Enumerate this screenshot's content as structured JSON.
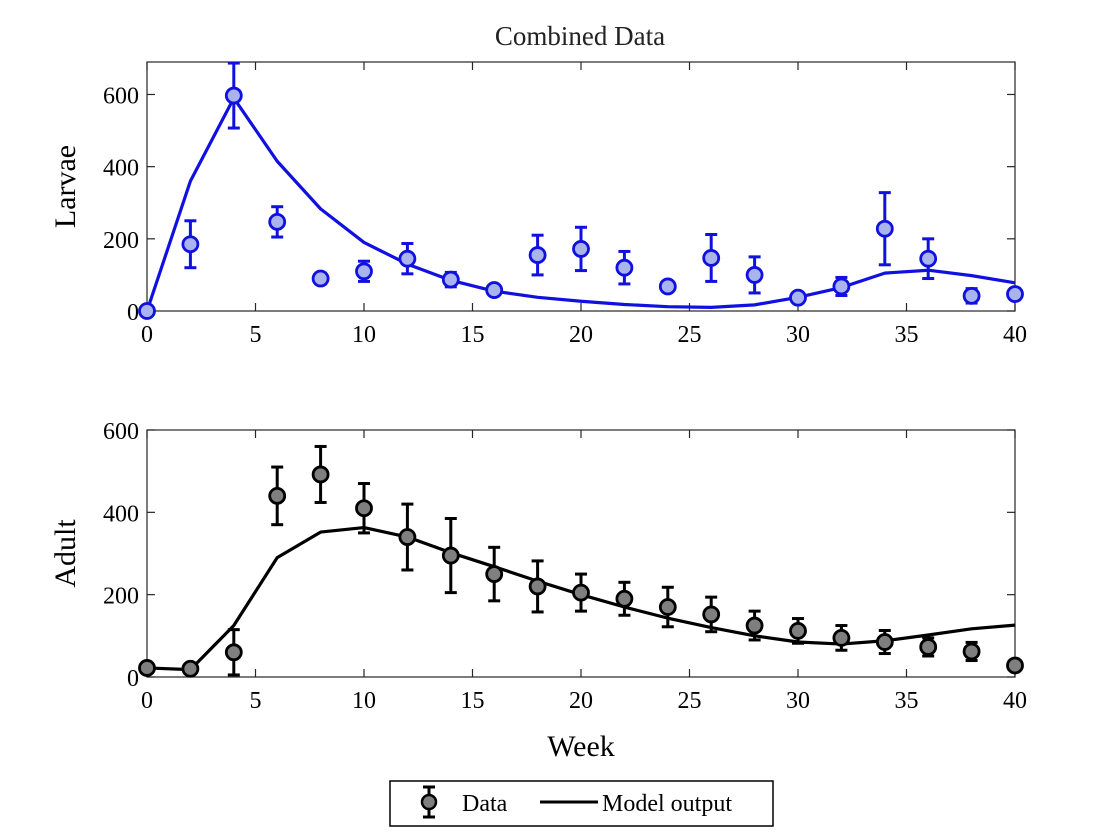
{
  "figure_title": "Combined Data",
  "legend": {
    "data_label": "Data",
    "model_label": "Model output",
    "placement": "bottom-center"
  },
  "colors": {
    "larvae_line": "#1010e0",
    "larvae_marker_fill": "#aab4ec",
    "adult_line": "#000000",
    "adult_marker_fill": "#7f7f7f",
    "legend_marker_fill": "#7f7f7f"
  },
  "chart_data": [
    {
      "type": "line",
      "panel": "top",
      "title": "Combined Data",
      "xlabel": "",
      "ylabel": "Larvae",
      "xlim": [
        0,
        40
      ],
      "ylim": [
        0,
        690
      ],
      "xticks": [
        0,
        5,
        10,
        15,
        20,
        25,
        30,
        35,
        40
      ],
      "yticks": [
        0,
        200,
        400,
        600
      ],
      "grid": false,
      "series": [
        {
          "name": "Data",
          "kind": "errorbar",
          "x": [
            0,
            2,
            4,
            6,
            8,
            10,
            12,
            14,
            16,
            18,
            20,
            22,
            24,
            26,
            28,
            30,
            32,
            34,
            36,
            38,
            40
          ],
          "y": [
            0,
            185,
            597,
            247,
            90,
            110,
            145,
            87,
            58,
            155,
            172,
            120,
            68,
            147,
            100,
            37,
            68,
            228,
            145,
            42,
            47
          ],
          "err": [
            2,
            65,
            90,
            42,
            15,
            28,
            42,
            20,
            12,
            55,
            60,
            45,
            12,
            65,
            50,
            12,
            25,
            100,
            55,
            20,
            15
          ]
        },
        {
          "name": "Model output",
          "kind": "line",
          "x": [
            0,
            2,
            4,
            6,
            8,
            10,
            12,
            14,
            16,
            18,
            20,
            22,
            24,
            26,
            28,
            30,
            32,
            34,
            36,
            38,
            40
          ],
          "y": [
            0,
            360,
            590,
            415,
            283,
            190,
            130,
            85,
            55,
            38,
            27,
            18,
            12,
            10,
            17,
            38,
            65,
            105,
            113,
            98,
            78
          ]
        }
      ]
    },
    {
      "type": "line",
      "panel": "bottom",
      "title": "",
      "xlabel": "Week",
      "ylabel": "Adult",
      "xlim": [
        0,
        40
      ],
      "ylim": [
        0,
        600
      ],
      "xticks": [
        0,
        5,
        10,
        15,
        20,
        25,
        30,
        35,
        40
      ],
      "yticks": [
        0,
        200,
        400,
        600
      ],
      "grid": false,
      "series": [
        {
          "name": "Data",
          "kind": "errorbar",
          "x": [
            0,
            2,
            4,
            6,
            8,
            10,
            12,
            14,
            16,
            18,
            20,
            22,
            24,
            26,
            28,
            30,
            32,
            34,
            36,
            38,
            40
          ],
          "y": [
            22,
            20,
            60,
            440,
            492,
            410,
            340,
            295,
            250,
            220,
            205,
            190,
            170,
            152,
            125,
            112,
            95,
            85,
            73,
            62,
            28
          ],
          "err": [
            5,
            5,
            55,
            70,
            68,
            60,
            80,
            90,
            65,
            62,
            45,
            40,
            48,
            42,
            35,
            30,
            30,
            28,
            22,
            22,
            5
          ]
        },
        {
          "name": "Model output",
          "kind": "line",
          "x": [
            0,
            2,
            4,
            6,
            8,
            10,
            12,
            14,
            16,
            18,
            20,
            22,
            24,
            26,
            28,
            30,
            32,
            34,
            36,
            38,
            40
          ],
          "y": [
            22,
            18,
            125,
            290,
            352,
            363,
            340,
            302,
            268,
            233,
            200,
            170,
            143,
            120,
            100,
            85,
            80,
            88,
            102,
            117,
            126
          ]
        }
      ]
    }
  ]
}
